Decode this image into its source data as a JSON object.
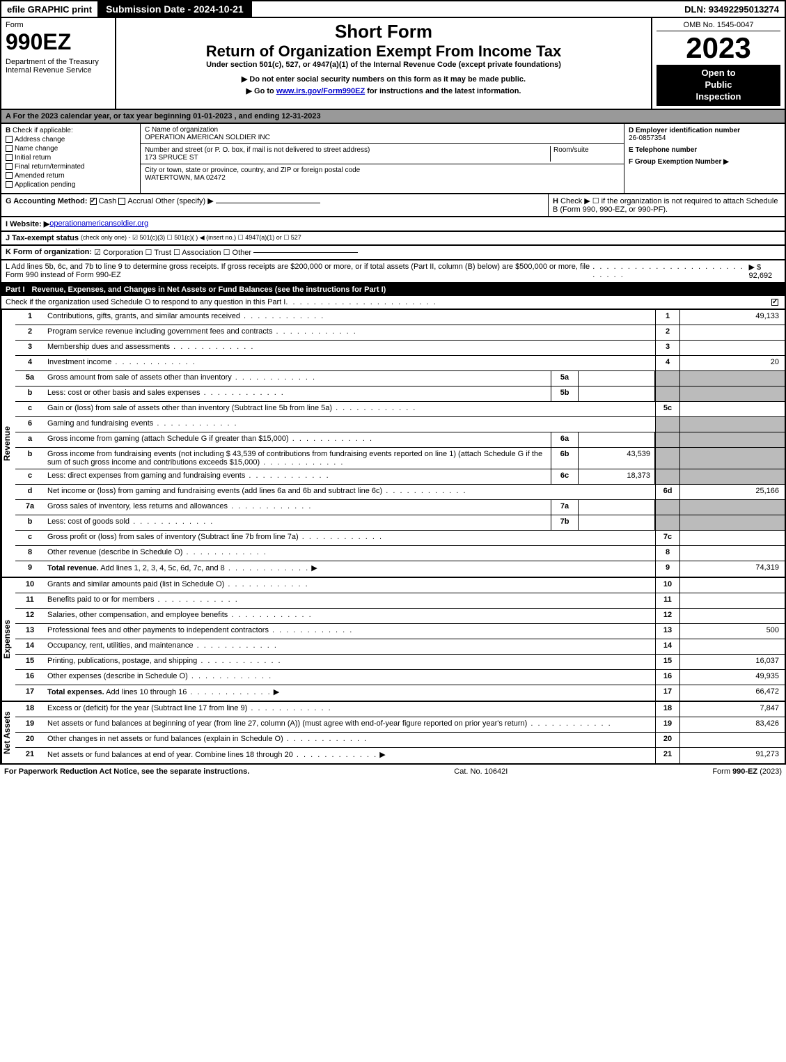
{
  "topbar": {
    "efile": "efile GRAPHIC print",
    "submission": "Submission Date - 2024-10-21",
    "dln": "DLN: 93492295013274"
  },
  "header": {
    "form_label": "Form",
    "form_number": "990EZ",
    "dept": "Department of the Treasury\nInternal Revenue Service",
    "short_form": "Short Form",
    "return_title": "Return of Organization Exempt From Income Tax",
    "subtitle": "Under section 501(c), 527, or 4947(a)(1) of the Internal Revenue Code (except private foundations)",
    "note1": "▶ Do not enter social security numbers on this form as it may be made public.",
    "note2": "▶ Go to www.irs.gov/Form990EZ for instructions and the latest information.",
    "omb": "OMB No. 1545-0047",
    "year": "2023",
    "inspection": "Open to\nPublic\nInspection"
  },
  "section_a": "A  For the 2023 calendar year, or tax year beginning 01-01-2023 , and ending 12-31-2023",
  "section_b": {
    "label": "B",
    "check_if": "Check if applicable:",
    "items": [
      "Address change",
      "Name change",
      "Initial return",
      "Final return/terminated",
      "Amended return",
      "Application pending"
    ]
  },
  "section_c": {
    "name_label": "C Name of organization",
    "name": "OPERATION AMERICAN SOLDIER INC",
    "street_label": "Number and street (or P. O. box, if mail is not delivered to street address)",
    "room_label": "Room/suite",
    "street": "173 SPRUCE ST",
    "city_label": "City or town, state or province, country, and ZIP or foreign postal code",
    "city": "WATERTOWN, MA  02472"
  },
  "section_d": {
    "label": "D Employer identification number",
    "value": "26-0857354"
  },
  "section_e": {
    "label": "E Telephone number",
    "value": ""
  },
  "section_f": {
    "label": "F Group Exemption Number  ▶",
    "value": ""
  },
  "section_g": {
    "label": "G Accounting Method:",
    "cash": "Cash",
    "accrual": "Accrual",
    "other": "Other (specify) ▶"
  },
  "section_h": {
    "label": "H",
    "text": "Check ▶  ☐  if the organization is not required to attach Schedule B (Form 990, 990-EZ, or 990-PF)."
  },
  "section_i": {
    "label": "I Website: ▶",
    "value": "operationamericansoldier.org"
  },
  "section_j": {
    "label": "J Tax-exempt status",
    "text": "(check only one) - ☑ 501(c)(3)  ☐ 501(c)(  ) ◀ (insert no.)  ☐ 4947(a)(1) or  ☐ 527"
  },
  "section_k": {
    "label": "K Form of organization:",
    "text": "☑ Corporation  ☐ Trust  ☐ Association  ☐ Other"
  },
  "section_l": {
    "text": "L Add lines 5b, 6c, and 7b to line 9 to determine gross receipts. If gross receipts are $200,000 or more, or if total assets (Part II, column (B) below) are $500,000 or more, file Form 990 instead of Form 990-EZ",
    "amount": "▶ $ 92,692"
  },
  "part1": {
    "label": "Part I",
    "title": "Revenue, Expenses, and Changes in Net Assets or Fund Balances (see the instructions for Part I)",
    "check_text": "Check if the organization used Schedule O to respond to any question in this Part I"
  },
  "revenue": {
    "sidebar": "Revenue",
    "rows": [
      {
        "num": "1",
        "desc": "Contributions, gifts, grants, and similar amounts received",
        "col": "1",
        "val": "49,133"
      },
      {
        "num": "2",
        "desc": "Program service revenue including government fees and contracts",
        "col": "2",
        "val": ""
      },
      {
        "num": "3",
        "desc": "Membership dues and assessments",
        "col": "3",
        "val": ""
      },
      {
        "num": "4",
        "desc": "Investment income",
        "col": "4",
        "val": "20"
      },
      {
        "num": "5a",
        "desc": "Gross amount from sale of assets other than inventory",
        "sub": "5a",
        "subval": "",
        "shaded": true
      },
      {
        "num": "b",
        "desc": "Less: cost or other basis and sales expenses",
        "sub": "5b",
        "subval": "",
        "shaded": true
      },
      {
        "num": "c",
        "desc": "Gain or (loss) from sale of assets other than inventory (Subtract line 5b from line 5a)",
        "col": "5c",
        "val": ""
      },
      {
        "num": "6",
        "desc": "Gaming and fundraising events",
        "shaded": true
      },
      {
        "num": "a",
        "desc": "Gross income from gaming (attach Schedule G if greater than $15,000)",
        "sub": "6a",
        "subval": "",
        "shaded": true
      },
      {
        "num": "b",
        "desc": "Gross income from fundraising events (not including $  43,539  of contributions from fundraising events reported on line 1) (attach Schedule G if the sum of such gross income and contributions exceeds $15,000)",
        "sub": "6b",
        "subval": "43,539",
        "shaded": true
      },
      {
        "num": "c",
        "desc": "Less: direct expenses from gaming and fundraising events",
        "sub": "6c",
        "subval": "18,373",
        "shaded": true
      },
      {
        "num": "d",
        "desc": "Net income or (loss) from gaming and fundraising events (add lines 6a and 6b and subtract line 6c)",
        "col": "6d",
        "val": "25,166"
      },
      {
        "num": "7a",
        "desc": "Gross sales of inventory, less returns and allowances",
        "sub": "7a",
        "subval": "",
        "shaded": true
      },
      {
        "num": "b",
        "desc": "Less: cost of goods sold",
        "sub": "7b",
        "subval": "",
        "shaded": true
      },
      {
        "num": "c",
        "desc": "Gross profit or (loss) from sales of inventory (Subtract line 7b from line 7a)",
        "col": "7c",
        "val": ""
      },
      {
        "num": "8",
        "desc": "Other revenue (describe in Schedule O)",
        "col": "8",
        "val": ""
      },
      {
        "num": "9",
        "desc": "Total revenue. Add lines 1, 2, 3, 4, 5c, 6d, 7c, and 8",
        "col": "9",
        "val": "74,319",
        "bold": true,
        "arrow": true
      }
    ]
  },
  "expenses": {
    "sidebar": "Expenses",
    "rows": [
      {
        "num": "10",
        "desc": "Grants and similar amounts paid (list in Schedule O)",
        "col": "10",
        "val": ""
      },
      {
        "num": "11",
        "desc": "Benefits paid to or for members",
        "col": "11",
        "val": ""
      },
      {
        "num": "12",
        "desc": "Salaries, other compensation, and employee benefits",
        "col": "12",
        "val": ""
      },
      {
        "num": "13",
        "desc": "Professional fees and other payments to independent contractors",
        "col": "13",
        "val": "500"
      },
      {
        "num": "14",
        "desc": "Occupancy, rent, utilities, and maintenance",
        "col": "14",
        "val": ""
      },
      {
        "num": "15",
        "desc": "Printing, publications, postage, and shipping",
        "col": "15",
        "val": "16,037"
      },
      {
        "num": "16",
        "desc": "Other expenses (describe in Schedule O)",
        "col": "16",
        "val": "49,935"
      },
      {
        "num": "17",
        "desc": "Total expenses. Add lines 10 through 16",
        "col": "17",
        "val": "66,472",
        "bold": true,
        "arrow": true
      }
    ]
  },
  "netassets": {
    "sidebar": "Net Assets",
    "rows": [
      {
        "num": "18",
        "desc": "Excess or (deficit) for the year (Subtract line 17 from line 9)",
        "col": "18",
        "val": "7,847"
      },
      {
        "num": "19",
        "desc": "Net assets or fund balances at beginning of year (from line 27, column (A)) (must agree with end-of-year figure reported on prior year's return)",
        "col": "19",
        "val": "83,426"
      },
      {
        "num": "20",
        "desc": "Other changes in net assets or fund balances (explain in Schedule O)",
        "col": "20",
        "val": ""
      },
      {
        "num": "21",
        "desc": "Net assets or fund balances at end of year. Combine lines 18 through 20",
        "col": "21",
        "val": "91,273",
        "arrow": true
      }
    ]
  },
  "footer": {
    "left": "For Paperwork Reduction Act Notice, see the separate instructions.",
    "center": "Cat. No. 10642I",
    "right": "Form 990-EZ (2023)"
  }
}
